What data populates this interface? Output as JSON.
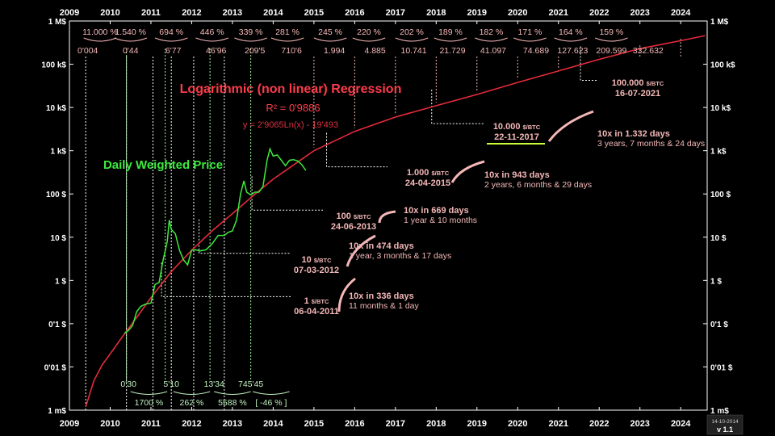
{
  "chart_data": {
    "type": "line",
    "title": "Logarithmic (non linear) Regression",
    "r2": "R² = 0'9886",
    "equation": "y = 2'9065Ln(x) - 19'493",
    "series_label": "Daily Weighted Price",
    "y_scale": "log",
    "x_ticks": [
      "2009",
      "2010",
      "2011",
      "2012",
      "2013",
      "2014",
      "2015",
      "2016",
      "2017",
      "2018",
      "2019",
      "2020",
      "2021",
      "2022",
      "2023",
      "2024"
    ],
    "y_ticks": [
      "1 M$",
      "100 k$",
      "10 k$",
      "1 k$",
      "100 $",
      "10 $",
      "1 $",
      "0'1 $",
      "0'01 $",
      "1 m$"
    ],
    "y_tick_values": [
      1000000,
      100000,
      10000,
      1000,
      100,
      10,
      1,
      0.1,
      0.01,
      0.001
    ],
    "grid": false,
    "top_percents": [
      "11.000 %",
      "1.540 %",
      "694 %",
      "446 %",
      "339 %",
      "281 %",
      "245 %",
      "220 %",
      "202 %",
      "189 %",
      "182 %",
      "171 %",
      "164 %",
      "159 %"
    ],
    "top_prices": [
      "0'004",
      "0'44",
      "6'77",
      "46'96",
      "209'5",
      "710'6",
      "1.994",
      "4.885",
      "10.741",
      "21.729",
      "41.097",
      "74.689",
      "127.623",
      "209.599",
      "332.632"
    ],
    "bottom_prices": [
      "0'30",
      "5'10",
      "13'34",
      "745'45"
    ],
    "bottom_percents": [
      "1700 %",
      "262 %",
      "5588 %",
      "[ -46 % ]"
    ],
    "milestones": [
      {
        "price": "1",
        "unit": "$/BTC",
        "date": "06-04-2011",
        "x": 2011.26,
        "y": 1
      },
      {
        "price": "10",
        "unit": "$/BTC",
        "date": "07-03-2012",
        "x": 2012.18,
        "y": 10
      },
      {
        "price": "100",
        "unit": "$/BTC",
        "date": "24-06-2013",
        "x": 2013.48,
        "y": 100
      },
      {
        "price": "1.000",
        "unit": "$/BTC",
        "date": "24-04-2015",
        "x": 2015.31,
        "y": 1000
      },
      {
        "price": "10.000",
        "unit": "$/BTC",
        "date": "22-11-2017",
        "x": 2017.89,
        "y": 10000
      },
      {
        "price": "100.000",
        "unit": "$/BTC",
        "date": "16-07-2021",
        "x": 2021.54,
        "y": 100000
      }
    ],
    "tenx": [
      {
        "title": "10x in 336 days",
        "sub": "11 months & 1 day"
      },
      {
        "title": "10x in 474 days",
        "sub": "1 year, 3 months & 17 days"
      },
      {
        "title": "10x in 669 days",
        "sub": "1 year & 10 months"
      },
      {
        "title": "10x in 943 days",
        "sub": "2 years, 6 months & 29 days"
      },
      {
        "title": "10x  in 1.332 days",
        "sub": "3 years, 7 months & 24 days"
      }
    ],
    "regression": [
      {
        "x": 2009.4,
        "y": 0.0012
      },
      {
        "x": 2009.6,
        "y": 0.0048
      },
      {
        "x": 2009.8,
        "y": 0.011
      },
      {
        "x": 2010.0,
        "y": 0.02
      },
      {
        "x": 2010.3,
        "y": 0.05
      },
      {
        "x": 2010.6,
        "y": 0.12
      },
      {
        "x": 2011.0,
        "y": 0.4
      },
      {
        "x": 2011.5,
        "y": 1.6
      },
      {
        "x": 2012.0,
        "y": 5
      },
      {
        "x": 2012.5,
        "y": 14
      },
      {
        "x": 2013.0,
        "y": 35
      },
      {
        "x": 2013.5,
        "y": 90
      },
      {
        "x": 2014.0,
        "y": 220
      },
      {
        "x": 2015.0,
        "y": 1000
      },
      {
        "x": 2016.0,
        "y": 2800
      },
      {
        "x": 2017.0,
        "y": 6000
      },
      {
        "x": 2018.0,
        "y": 11000
      },
      {
        "x": 2019.0,
        "y": 20000
      },
      {
        "x": 2020.0,
        "y": 38000
      },
      {
        "x": 2021.0,
        "y": 70000
      },
      {
        "x": 2022.0,
        "y": 130000
      },
      {
        "x": 2023.0,
        "y": 230000
      },
      {
        "x": 2024.0,
        "y": 350000
      },
      {
        "x": 2024.6,
        "y": 460000
      }
    ],
    "price": [
      {
        "x": 2010.35,
        "y": 0.06
      },
      {
        "x": 2010.45,
        "y": 0.07
      },
      {
        "x": 2010.55,
        "y": 0.09
      },
      {
        "x": 2010.65,
        "y": 0.19
      },
      {
        "x": 2010.75,
        "y": 0.25
      },
      {
        "x": 2010.85,
        "y": 0.28
      },
      {
        "x": 2011.0,
        "y": 0.3
      },
      {
        "x": 2011.1,
        "y": 0.8
      },
      {
        "x": 2011.2,
        "y": 0.9
      },
      {
        "x": 2011.3,
        "y": 3
      },
      {
        "x": 2011.4,
        "y": 8
      },
      {
        "x": 2011.45,
        "y": 25
      },
      {
        "x": 2011.5,
        "y": 15
      },
      {
        "x": 2011.6,
        "y": 12
      },
      {
        "x": 2011.7,
        "y": 5
      },
      {
        "x": 2011.8,
        "y": 3
      },
      {
        "x": 2011.9,
        "y": 2.3
      },
      {
        "x": 2012.0,
        "y": 5
      },
      {
        "x": 2012.1,
        "y": 5.1
      },
      {
        "x": 2012.2,
        "y": 4.8
      },
      {
        "x": 2012.35,
        "y": 5.1
      },
      {
        "x": 2012.5,
        "y": 7
      },
      {
        "x": 2012.65,
        "y": 11
      },
      {
        "x": 2012.8,
        "y": 11
      },
      {
        "x": 2012.9,
        "y": 13
      },
      {
        "x": 2013.0,
        "y": 14
      },
      {
        "x": 2013.1,
        "y": 25
      },
      {
        "x": 2013.2,
        "y": 100
      },
      {
        "x": 2013.28,
        "y": 200
      },
      {
        "x": 2013.35,
        "y": 110
      },
      {
        "x": 2013.45,
        "y": 95
      },
      {
        "x": 2013.55,
        "y": 110
      },
      {
        "x": 2013.65,
        "y": 110
      },
      {
        "x": 2013.75,
        "y": 150
      },
      {
        "x": 2013.85,
        "y": 600
      },
      {
        "x": 2013.92,
        "y": 1100
      },
      {
        "x": 2014.0,
        "y": 750
      },
      {
        "x": 2014.1,
        "y": 800
      },
      {
        "x": 2014.2,
        "y": 600
      },
      {
        "x": 2014.3,
        "y": 450
      },
      {
        "x": 2014.4,
        "y": 600
      },
      {
        "x": 2014.5,
        "y": 620
      },
      {
        "x": 2014.6,
        "y": 580
      },
      {
        "x": 2014.7,
        "y": 480
      },
      {
        "x": 2014.8,
        "y": 350
      }
    ]
  },
  "corner": {
    "date": "14-10-2014",
    "version": "v 1.1"
  }
}
